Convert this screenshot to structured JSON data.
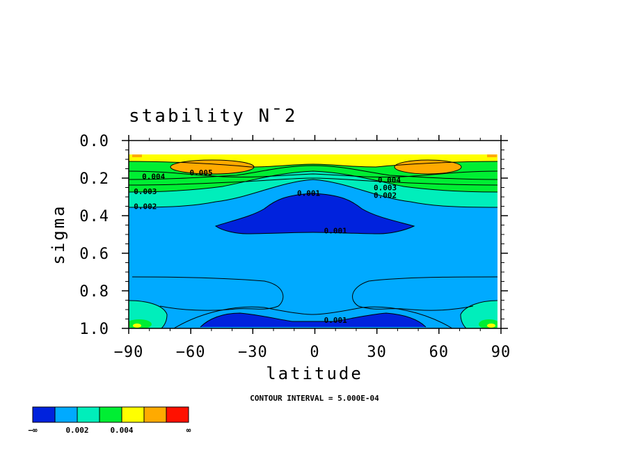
{
  "chart_data": {
    "type": "heatmap",
    "title": "stability N¯2",
    "xlabel": "latitude",
    "ylabel": "sigma",
    "xlim": [
      -90,
      90
    ],
    "ylim": [
      1.0,
      0.0
    ],
    "x_ticks": [
      -90,
      -60,
      -30,
      0,
      30,
      60,
      90
    ],
    "x_tick_labels": [
      "−90",
      "−60",
      "−30",
      "0",
      "30",
      "60",
      "90"
    ],
    "y_ticks": [
      0.0,
      0.2,
      0.4,
      0.6,
      0.8,
      1.0
    ],
    "y_tick_labels": [
      "0.0",
      "0.2",
      "0.4",
      "0.6",
      "0.8",
      "1.0"
    ],
    "contour_interval_text": "CONTOUR INTERVAL = 5.000E-04",
    "colorbar": {
      "colors": [
        "#0022dd",
        "#00aaff",
        "#00eebb",
        "#00ee33",
        "#ffff00",
        "#ffaa00",
        "#ff1100"
      ],
      "labels": [
        "−∞",
        "0.002",
        "0.004",
        "∞"
      ]
    },
    "contour_labels": [
      {
        "text": "0.005",
        "lat": -55,
        "sigma": 0.17
      },
      {
        "text": "0.004",
        "lat": -78,
        "sigma": 0.19
      },
      {
        "text": "0.003",
        "lat": -82,
        "sigma": 0.27
      },
      {
        "text": "0.002",
        "lat": -82,
        "sigma": 0.35
      },
      {
        "text": "0.004",
        "lat": 36,
        "sigma": 0.21
      },
      {
        "text": "0.003",
        "lat": 34,
        "sigma": 0.25
      },
      {
        "text": "0.002",
        "lat": 34,
        "sigma": 0.29
      },
      {
        "text": "0.001",
        "lat": -3,
        "sigma": 0.28
      },
      {
        "text": "0.001",
        "lat": 10,
        "sigma": 0.48
      },
      {
        "text": "0.001",
        "lat": 10,
        "sigma": 0.955
      }
    ],
    "regions": [
      {
        "name": "below 0.001 upper",
        "color_index": 0,
        "lat": [
          -48,
          48
        ],
        "sigma": [
          0.28,
          0.49
        ]
      },
      {
        "name": "below 0.001 surface",
        "color_index": 0,
        "lat": [
          -56,
          54
        ],
        "sigma": [
          0.91,
          1.0
        ]
      },
      {
        "name": "0.005-0.0055 south",
        "color_index": 5,
        "lat": [
          -70,
          -45
        ],
        "sigma": [
          0.11,
          0.17
        ]
      },
      {
        "name": "0.005-0.0055 north",
        "color_index": 5,
        "lat": [
          40,
          68
        ],
        "sigma": [
          0.11,
          0.18
        ]
      }
    ]
  }
}
